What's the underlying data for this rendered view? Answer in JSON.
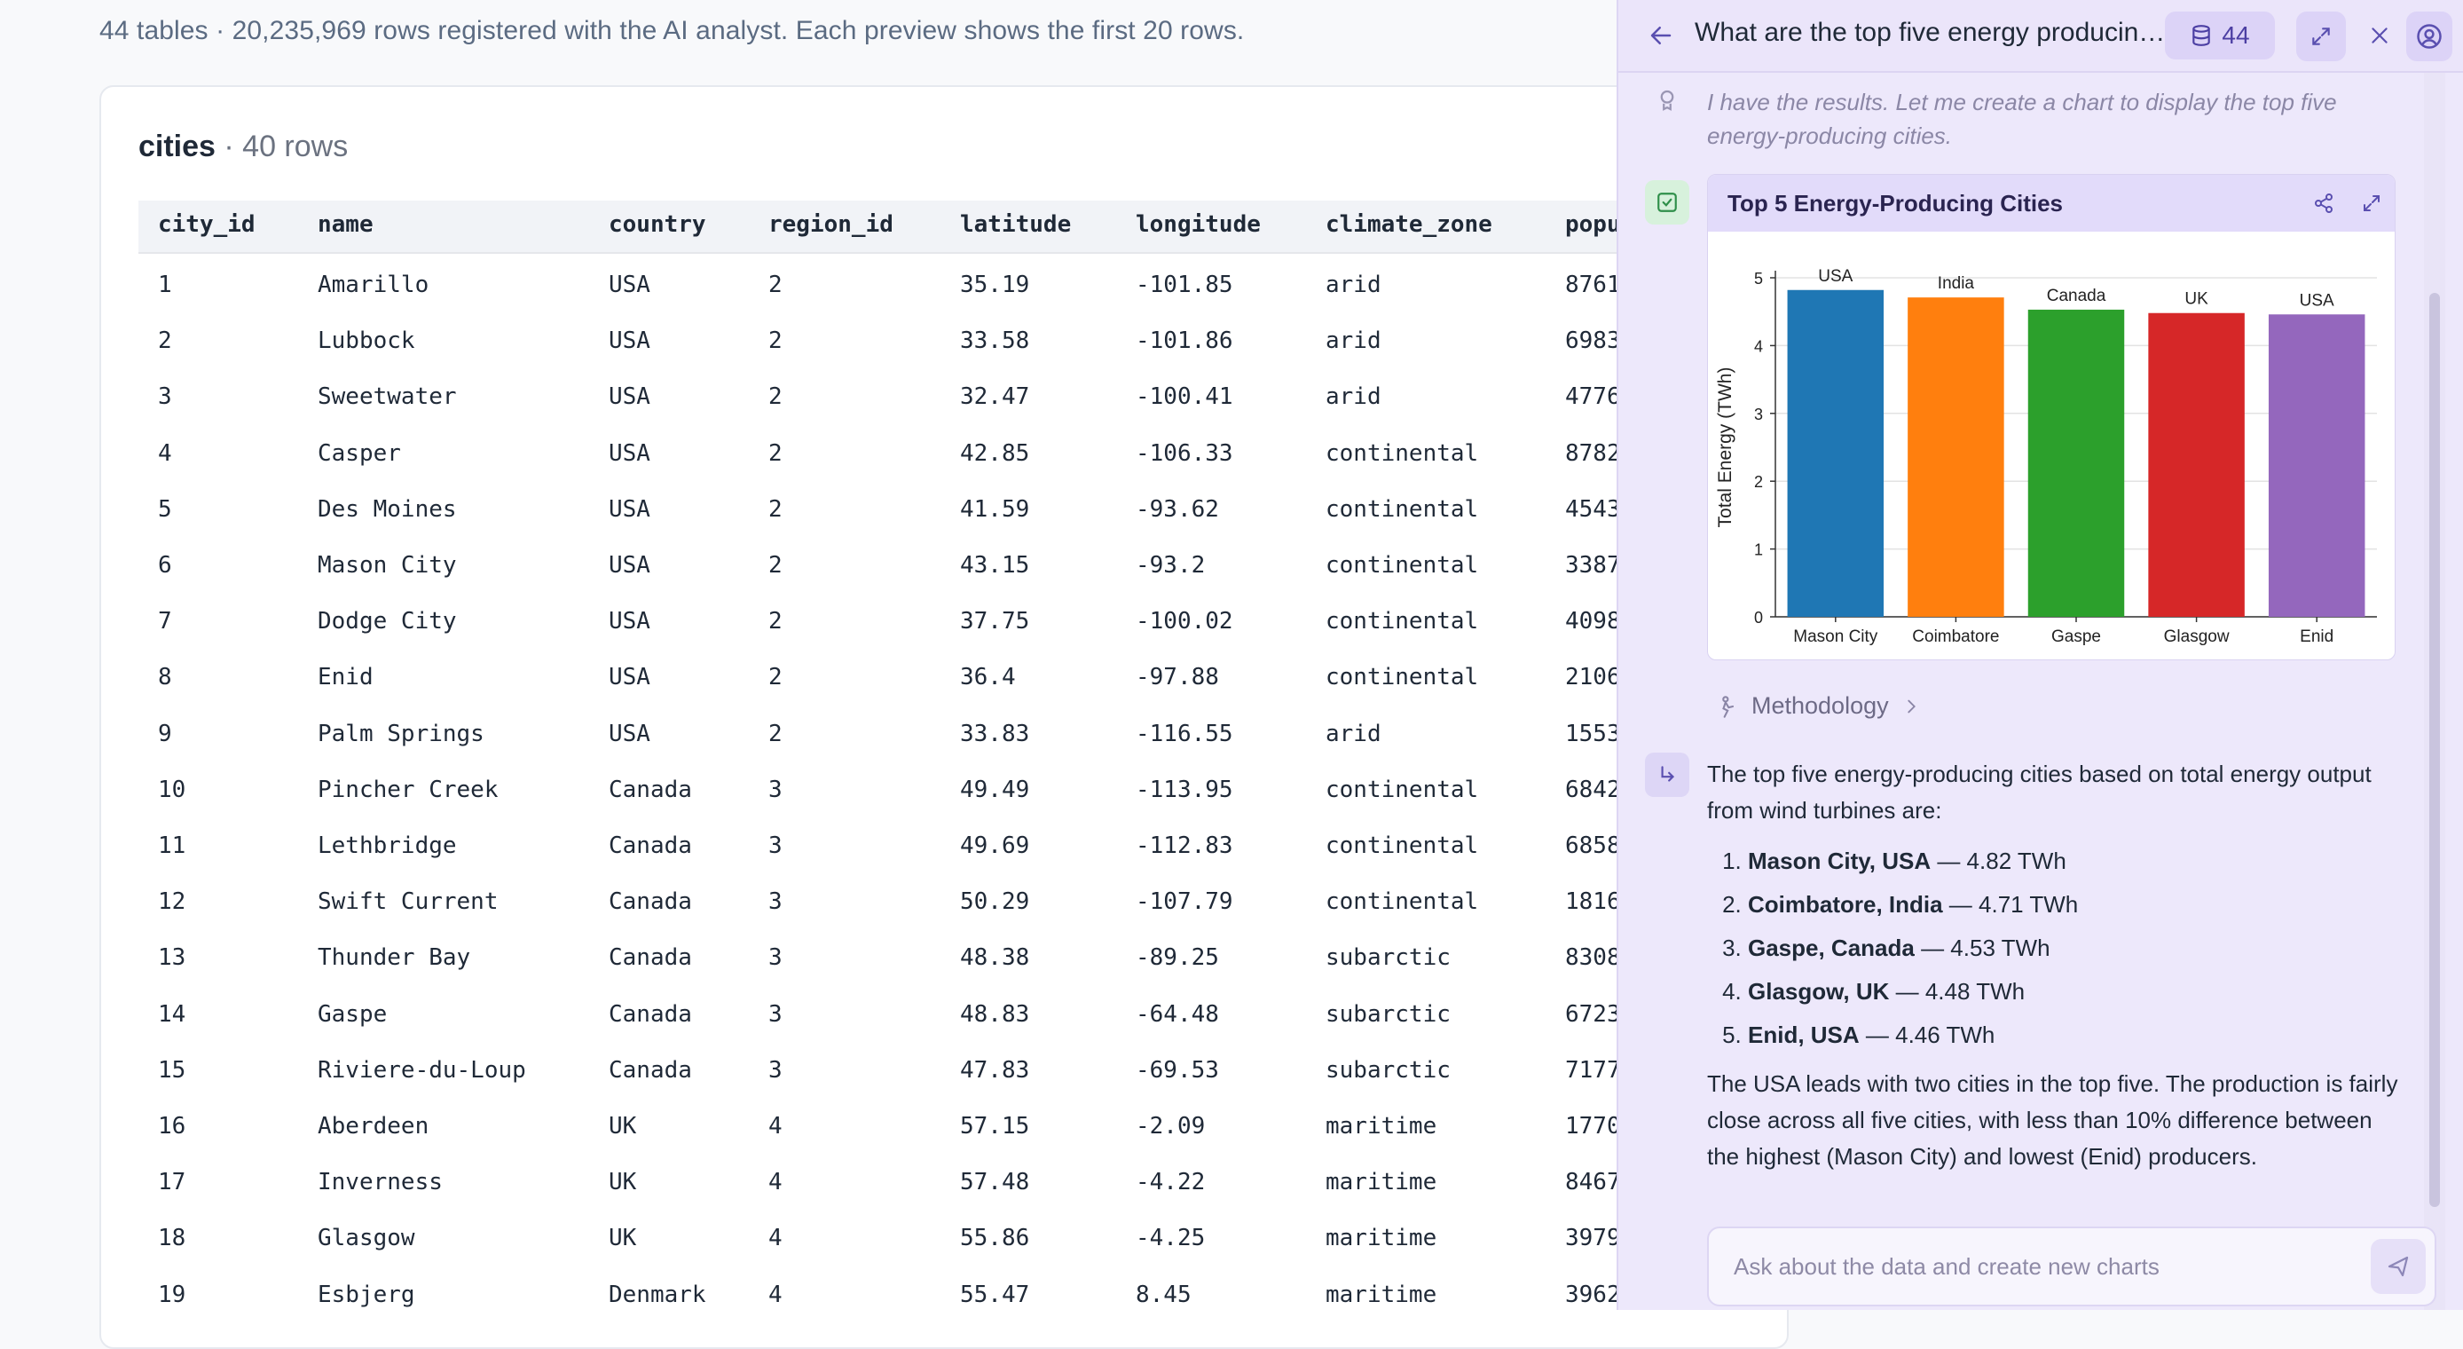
{
  "summary": "44 tables · 20,235,969 rows registered with the AI analyst. Each preview shows the first 20 rows.",
  "table": {
    "name": "cities",
    "meta": " · 40 rows",
    "columns": [
      "city_id",
      "name",
      "country",
      "region_id",
      "latitude",
      "longitude",
      "climate_zone",
      "popu"
    ],
    "rows": [
      [
        "1",
        "Amarillo",
        "USA",
        "2",
        "35.19",
        "-101.85",
        "arid",
        "8761"
      ],
      [
        "2",
        "Lubbock",
        "USA",
        "2",
        "33.58",
        "-101.86",
        "arid",
        "6983"
      ],
      [
        "3",
        "Sweetwater",
        "USA",
        "2",
        "32.47",
        "-100.41",
        "arid",
        "4776"
      ],
      [
        "4",
        "Casper",
        "USA",
        "2",
        "42.85",
        "-106.33",
        "continental",
        "8782"
      ],
      [
        "5",
        "Des Moines",
        "USA",
        "2",
        "41.59",
        "-93.62",
        "continental",
        "4543"
      ],
      [
        "6",
        "Mason City",
        "USA",
        "2",
        "43.15",
        "-93.2",
        "continental",
        "3387"
      ],
      [
        "7",
        "Dodge City",
        "USA",
        "2",
        "37.75",
        "-100.02",
        "continental",
        "4098"
      ],
      [
        "8",
        "Enid",
        "USA",
        "2",
        "36.4",
        "-97.88",
        "continental",
        "2106"
      ],
      [
        "9",
        "Palm Springs",
        "USA",
        "2",
        "33.83",
        "-116.55",
        "arid",
        "1553"
      ],
      [
        "10",
        "Pincher Creek",
        "Canada",
        "3",
        "49.49",
        "-113.95",
        "continental",
        "6842"
      ],
      [
        "11",
        "Lethbridge",
        "Canada",
        "3",
        "49.69",
        "-112.83",
        "continental",
        "6858"
      ],
      [
        "12",
        "Swift Current",
        "Canada",
        "3",
        "50.29",
        "-107.79",
        "continental",
        "1816"
      ],
      [
        "13",
        "Thunder Bay",
        "Canada",
        "3",
        "48.38",
        "-89.25",
        "subarctic",
        "8308"
      ],
      [
        "14",
        "Gaspe",
        "Canada",
        "3",
        "48.83",
        "-64.48",
        "subarctic",
        "6723"
      ],
      [
        "15",
        "Riviere-du-Loup",
        "Canada",
        "3",
        "47.83",
        "-69.53",
        "subarctic",
        "7177"
      ],
      [
        "16",
        "Aberdeen",
        "UK",
        "4",
        "57.15",
        "-2.09",
        "maritime",
        "1770"
      ],
      [
        "17",
        "Inverness",
        "UK",
        "4",
        "57.48",
        "-4.22",
        "maritime",
        "8467"
      ],
      [
        "18",
        "Glasgow",
        "UK",
        "4",
        "55.86",
        "-4.25",
        "maritime",
        "3979"
      ],
      [
        "19",
        "Esbjerg",
        "Denmark",
        "4",
        "55.47",
        "8.45",
        "maritime",
        "3962"
      ]
    ]
  },
  "panel": {
    "title": "What are the top five energy producing cities?",
    "db_count": "44",
    "thinking": "I have the results. Let me create a chart to display the top five energy-producing cities.",
    "chart_card_title": "Top 5 Energy-Producing Cities",
    "methodology_label": "Methodology",
    "answer_intro": "The top five energy-producing cities based on total energy output from wind turbines are:",
    "answer_items": [
      {
        "bold": "Mason City, USA",
        "rest": " — 4.82 TWh"
      },
      {
        "bold": "Coimbatore, India",
        "rest": " — 4.71 TWh"
      },
      {
        "bold": "Gaspe, Canada",
        "rest": " — 4.53 TWh"
      },
      {
        "bold": "Glasgow, UK",
        "rest": " — 4.48 TWh"
      },
      {
        "bold": "Enid, USA",
        "rest": " — 4.46 TWh"
      }
    ],
    "answer_outro": "The USA leads with two cities in the top five. The production is fairly close across all five cities, with less than 10% difference between the highest (Mason City) and lowest (Enid) producers.",
    "composer_placeholder": "Ask about the data and create new charts"
  },
  "chart_data": {
    "type": "bar",
    "title": "",
    "xlabel": "",
    "ylabel": "Total Energy (TWh)",
    "categories": [
      "Mason City",
      "Coimbatore",
      "Gaspe",
      "Glasgow",
      "Enid"
    ],
    "values": [
      4.82,
      4.71,
      4.53,
      4.48,
      4.46
    ],
    "data_labels": [
      "USA",
      "India",
      "Canada",
      "UK",
      "USA"
    ],
    "colors": [
      "#1f77b4",
      "#ff7f0e",
      "#2ca02c",
      "#d62728",
      "#9467bd"
    ],
    "ylim": [
      0,
      5
    ],
    "yticks": [
      "0",
      "1",
      "2",
      "3",
      "4",
      "5"
    ],
    "grid": true
  }
}
